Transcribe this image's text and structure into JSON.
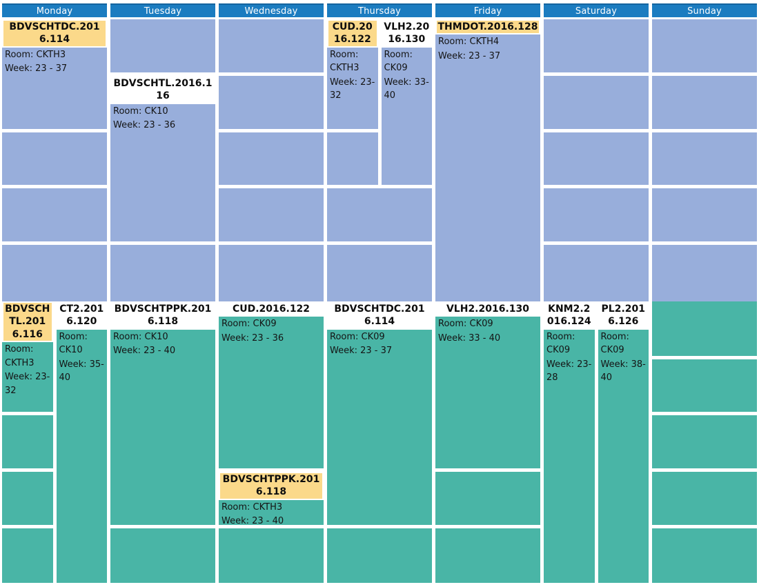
{
  "app": {
    "view_name": "weekly-timetable"
  },
  "colors": {
    "header_bg": "#1B7CC0",
    "header_border": "#14659F",
    "header_text": "#FFFFFF",
    "morning_bg": "#98AEDB",
    "afternoon_bg": "#49B5A6",
    "event_yellow": "#FBD98A",
    "event_white": "#FFFFFF",
    "gap_white": "#FFFFFF"
  },
  "labels": {
    "room_prefix": "Room: ",
    "week_prefix": "Week: "
  },
  "days": [
    {
      "label": "Monday",
      "morning": [
        {
          "rows": [
            "m1",
            "m2"
          ],
          "event": {
            "title": "BDVSCHTDC.2016.114",
            "style": "yellow",
            "room": "CKTH3",
            "week": "23 - 37"
          }
        },
        {
          "rows": [
            "m3"
          ]
        },
        {
          "rows": [
            "m4"
          ]
        },
        {
          "rows": [
            "m5"
          ]
        }
      ],
      "afternoon": [
        {
          "split": [
            [
              {
                "rows": [
                  "a1",
                  "a2"
                ],
                "event": {
                  "title": "BDVSCHTL.2016.116",
                  "style": "yellow",
                  "room": "CKTH3",
                  "week": "23-32"
                }
              },
              {
                "rows": [
                  "a3"
                ]
              },
              {
                "rows": [
                  "a4"
                ]
              },
              {
                "rows": [
                  "a5"
                ]
              }
            ],
            [
              {
                "rows": [
                  "a1",
                  "a2",
                  "a3",
                  "a4",
                  "a5"
                ],
                "event": {
                  "title": "CT2.2016.120",
                  "style": "white",
                  "room": "CK10",
                  "week": "35-40"
                }
              }
            ]
          ]
        }
      ]
    },
    {
      "label": "Tuesday",
      "morning": [
        {
          "rows": [
            "m1"
          ]
        },
        {
          "rows": [
            "m2",
            "m3",
            "m4"
          ],
          "event": {
            "title": "BDVSCHTL.2016.116",
            "style": "white",
            "room": "CK10",
            "week": "23 - 36"
          }
        },
        {
          "rows": [
            "m5"
          ]
        }
      ],
      "afternoon": [
        {
          "rows": [
            "a1",
            "a2",
            "a3",
            "a4"
          ],
          "event": {
            "title": "BDVSCHTPPK.2016.118",
            "style": "white",
            "room": "CK10",
            "week": "23 - 40"
          }
        },
        {
          "rows": [
            "a5"
          ]
        }
      ]
    },
    {
      "label": "Wednesday",
      "morning": [
        {
          "rows": [
            "m1"
          ]
        },
        {
          "rows": [
            "m2"
          ]
        },
        {
          "rows": [
            "m3"
          ]
        },
        {
          "rows": [
            "m4"
          ]
        },
        {
          "rows": [
            "m5"
          ]
        }
      ],
      "afternoon": [
        {
          "rows": [
            "a1",
            "a2",
            "a3"
          ],
          "event": {
            "title": "CUD.2016.122",
            "style": "white",
            "room": "CK09",
            "week": "23 - 36"
          }
        },
        {
          "rows": [
            "a4"
          ],
          "event": {
            "title": "BDVSCHTPPK.2016.118",
            "style": "yellow",
            "room": "CKTH3",
            "week": "23 - 40"
          }
        },
        {
          "rows": [
            "a5"
          ]
        }
      ]
    },
    {
      "label": "Thursday",
      "morning": [
        {
          "split": [
            [
              {
                "rows": [
                  "m1",
                  "m2"
                ],
                "event": {
                  "title": "CUD.2016.122",
                  "style": "yellow",
                  "room": "CKTH3",
                  "week": "23-32"
                }
              },
              {
                "rows": [
                  "m3"
                ]
              }
            ],
            [
              {
                "rows": [
                  "m1",
                  "m2",
                  "m3"
                ],
                "event": {
                  "title": "VLH2.2016.130",
                  "style": "white",
                  "room": "CK09",
                  "week": "33-40"
                }
              }
            ]
          ]
        },
        {
          "rows": [
            "m4"
          ]
        },
        {
          "rows": [
            "m5"
          ]
        }
      ],
      "afternoon": [
        {
          "rows": [
            "a1",
            "a2",
            "a3",
            "a4"
          ],
          "event": {
            "title": "BDVSCHTDC.2016.114",
            "style": "white",
            "room": "CK09",
            "week": "23 - 37"
          }
        },
        {
          "rows": [
            "a5"
          ]
        }
      ]
    },
    {
      "label": "Friday",
      "morning": [
        {
          "rows": [
            "m1",
            "m2",
            "m3",
            "m4",
            "m5"
          ],
          "event": {
            "title": "THMDOT.2016.128",
            "style": "yellow",
            "room": "CKTH4",
            "week": "23 - 37"
          }
        }
      ],
      "afternoon": [
        {
          "rows": [
            "a1",
            "a2",
            "a3"
          ],
          "event": {
            "title": "VLH2.2016.130",
            "style": "white",
            "room": "CK09",
            "week": "33 - 40"
          }
        },
        {
          "rows": [
            "a4"
          ]
        },
        {
          "rows": [
            "a5"
          ]
        }
      ]
    },
    {
      "label": "Saturday",
      "morning": [
        {
          "rows": [
            "m1"
          ]
        },
        {
          "rows": [
            "m2"
          ]
        },
        {
          "rows": [
            "m3"
          ]
        },
        {
          "rows": [
            "m4"
          ]
        },
        {
          "rows": [
            "m5"
          ]
        }
      ],
      "afternoon": [
        {
          "split": [
            [
              {
                "rows": [
                  "a1",
                  "a2",
                  "a3",
                  "a4",
                  "a5"
                ],
                "event": {
                  "title": "KNM2.2016.124",
                  "style": "white",
                  "room": "CK09",
                  "week": "23-28"
                }
              }
            ],
            [
              {
                "rows": [
                  "a1",
                  "a2",
                  "a3",
                  "a4",
                  "a5"
                ],
                "event": {
                  "title": "PL2.2016.126",
                  "style": "white",
                  "room": "CK09",
                  "week": "38-40"
                }
              }
            ]
          ]
        }
      ]
    },
    {
      "label": "Sunday",
      "morning": [
        {
          "rows": [
            "m1"
          ]
        },
        {
          "rows": [
            "m2"
          ]
        },
        {
          "rows": [
            "m3"
          ]
        },
        {
          "rows": [
            "m4"
          ]
        },
        {
          "rows": [
            "m5"
          ]
        }
      ],
      "afternoon": [
        {
          "rows": [
            "a1"
          ]
        },
        {
          "rows": [
            "a2"
          ]
        },
        {
          "rows": [
            "a3"
          ]
        },
        {
          "rows": [
            "a4"
          ]
        },
        {
          "rows": [
            "a5"
          ]
        }
      ]
    }
  ]
}
